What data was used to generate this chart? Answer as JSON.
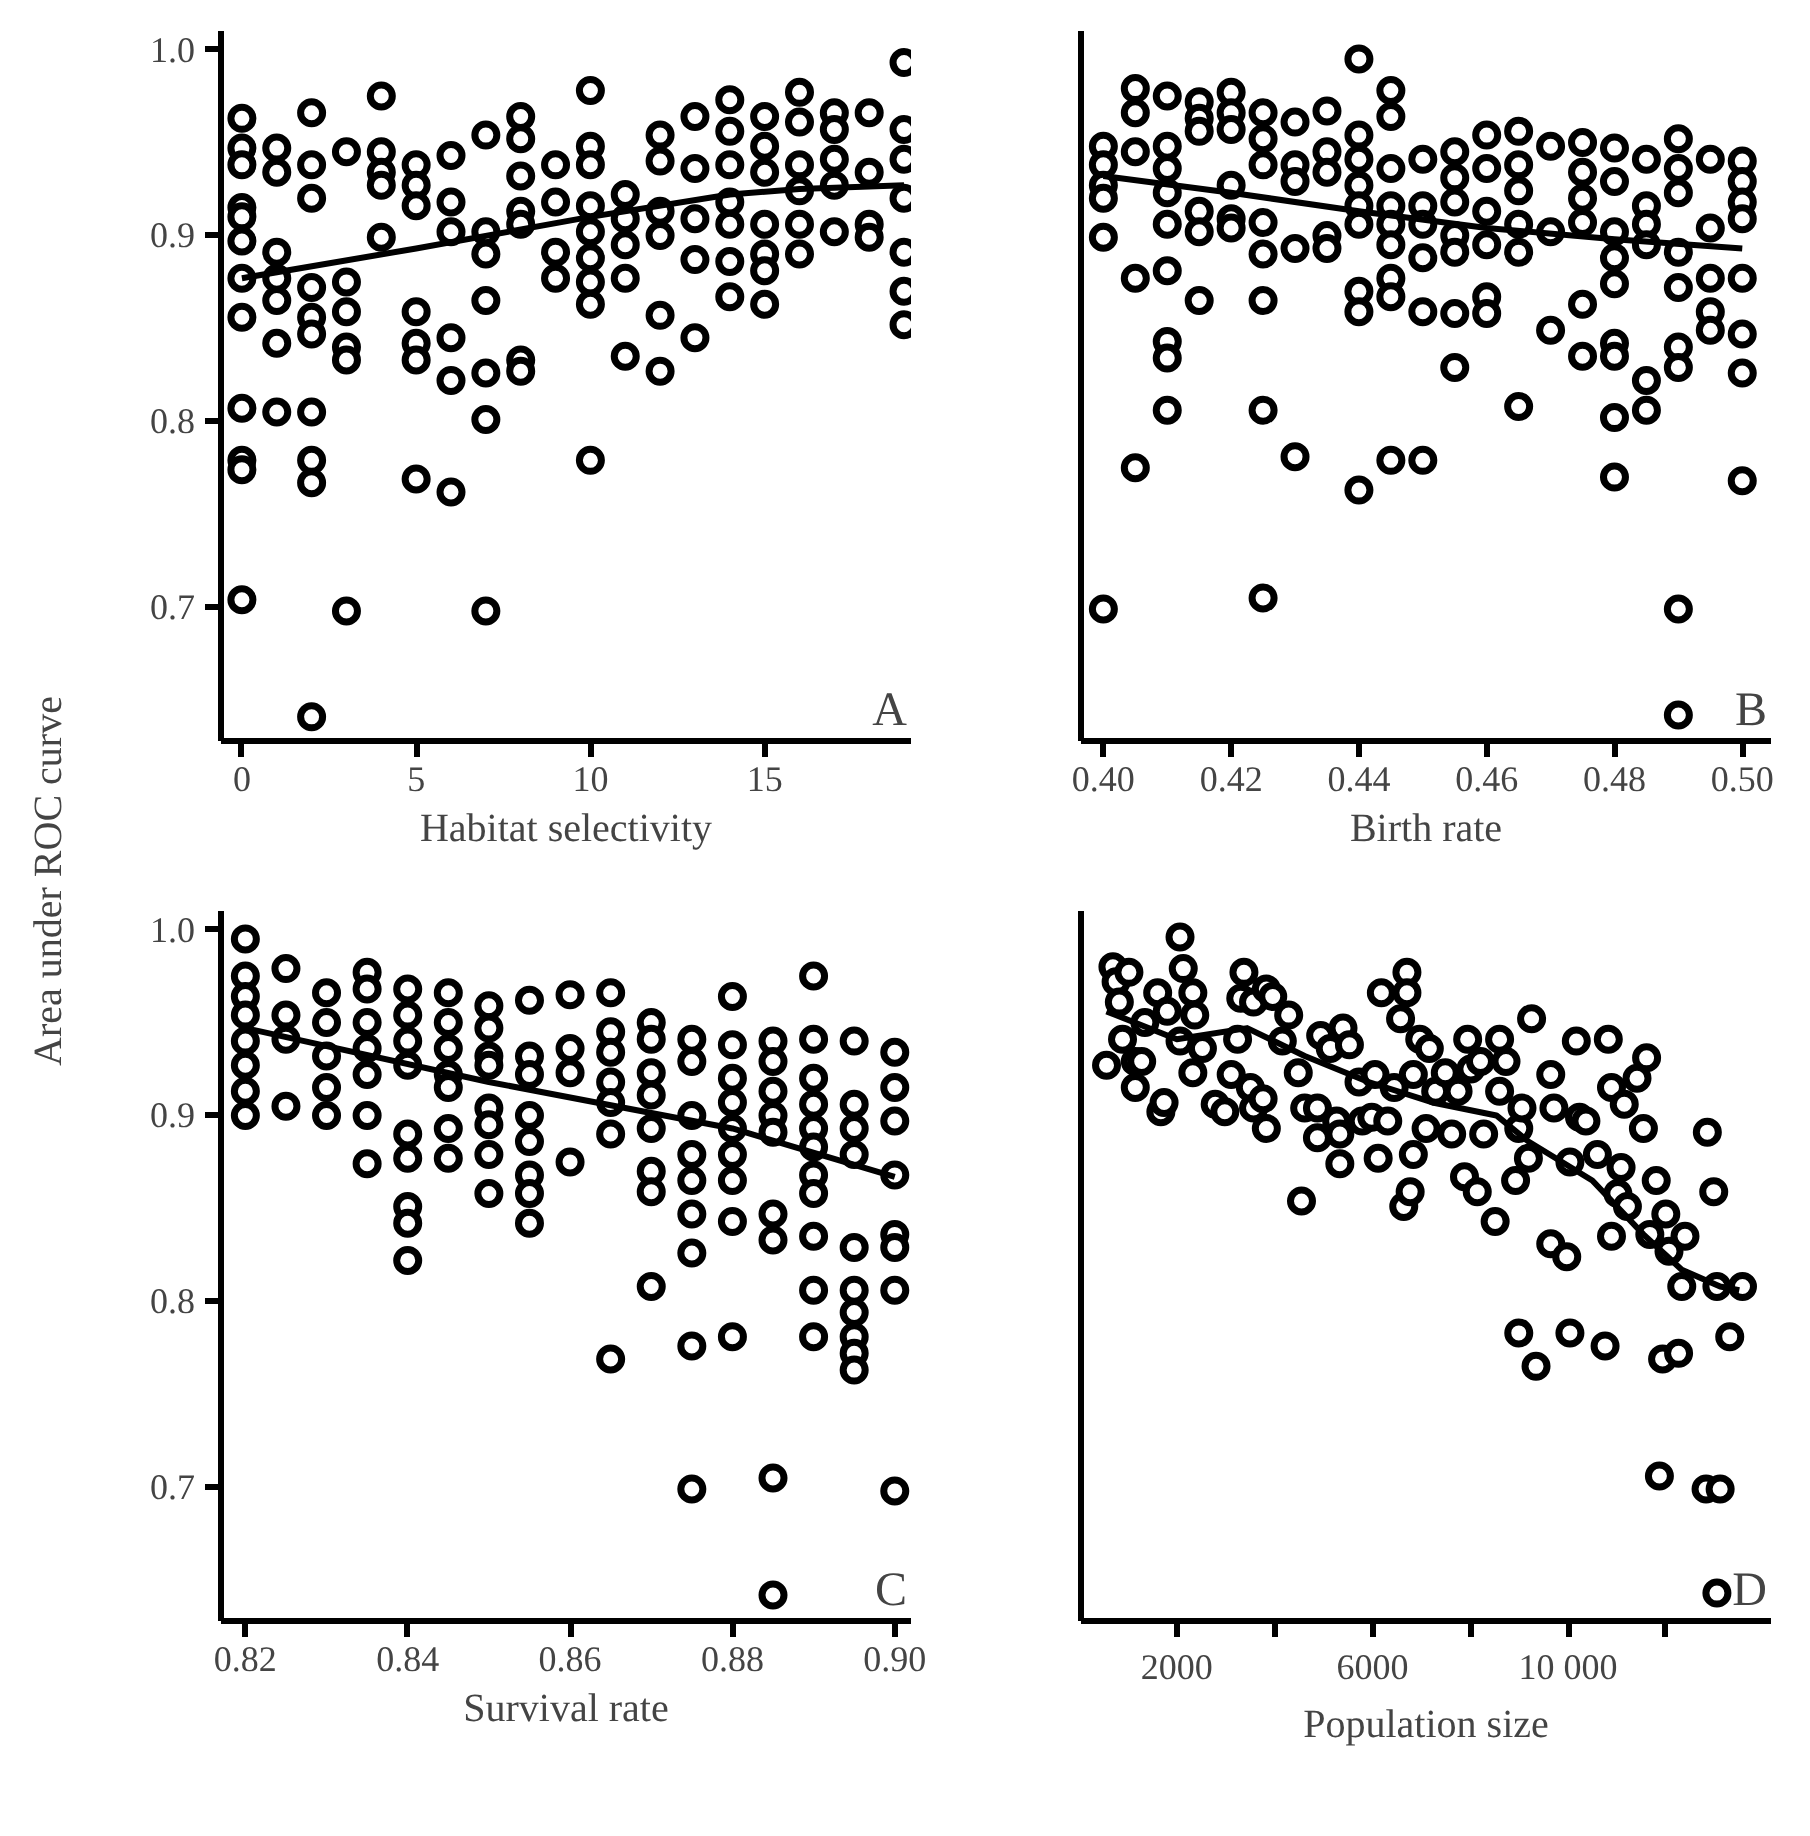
{
  "chart_data": [
    {
      "type": "scatter",
      "ylabel": "Area under ROC curve",
      "xlabel": "Habitat selectivity",
      "xlim": [
        -0.6,
        19.2
      ],
      "ylim": [
        0.628,
        1.01
      ],
      "xticks": [
        0,
        5,
        10,
        15
      ],
      "yticks": [
        0.7,
        0.8,
        0.9,
        {
          "value": 1.0,
          "label": "1.0"
        }
      ],
      "grid": false,
      "annotations": [
        "A"
      ],
      "series": [
        {
          "color": "#000000",
          "marker": "circle",
          "x": [
            0,
            0,
            0,
            0,
            0,
            0,
            0,
            0,
            0,
            0,
            0,
            0,
            1,
            1,
            1,
            1,
            1,
            1,
            1,
            2,
            2,
            2,
            2,
            2,
            2,
            2,
            2,
            2,
            2,
            3,
            3,
            3,
            3,
            3,
            3,
            4,
            4,
            4,
            4,
            4,
            5,
            5,
            5,
            5,
            5,
            5,
            5,
            6,
            6,
            6,
            6,
            6,
            6,
            7,
            7,
            7,
            7,
            7,
            7,
            7,
            8,
            8,
            8,
            8,
            8,
            8,
            8,
            9,
            9,
            9,
            9,
            10,
            10,
            10,
            10,
            10,
            10,
            10,
            10,
            10,
            11,
            11,
            11,
            11,
            11,
            12,
            12,
            12,
            12,
            12,
            12,
            13,
            13,
            13,
            13,
            13,
            14,
            14,
            14,
            14,
            14,
            14,
            14,
            15,
            15,
            15,
            15,
            15,
            15,
            15,
            16,
            16,
            16,
            16,
            16,
            16,
            17,
            17,
            17,
            17,
            17,
            18,
            18,
            18,
            18,
            19,
            19,
            19,
            19,
            19,
            19,
            19
          ],
          "values": [
            0.963,
            0.947,
            0.938,
            0.915,
            0.91,
            0.897,
            0.877,
            0.856,
            0.807,
            0.779,
            0.774,
            0.704,
            0.947,
            0.934,
            0.891,
            0.877,
            0.865,
            0.842,
            0.805,
            0.966,
            0.938,
            0.92,
            0.872,
            0.856,
            0.847,
            0.805,
            0.779,
            0.767,
            0.641,
            0.945,
            0.875,
            0.859,
            0.84,
            0.833,
            0.698,
            0.975,
            0.945,
            0.934,
            0.927,
            0.899,
            0.938,
            0.927,
            0.916,
            0.859,
            0.842,
            0.833,
            0.769,
            0.943,
            0.918,
            0.902,
            0.845,
            0.822,
            0.762,
            0.954,
            0.902,
            0.89,
            0.865,
            0.826,
            0.801,
            0.698,
            0.964,
            0.952,
            0.932,
            0.913,
            0.906,
            0.833,
            0.827,
            0.938,
            0.918,
            0.891,
            0.877,
            0.978,
            0.948,
            0.938,
            0.916,
            0.902,
            0.888,
            0.875,
            0.863,
            0.779,
            0.922,
            0.909,
            0.895,
            0.877,
            0.835,
            0.954,
            0.94,
            0.913,
            0.9,
            0.857,
            0.827,
            0.964,
            0.936,
            0.909,
            0.887,
            0.845,
            0.973,
            0.956,
            0.938,
            0.918,
            0.906,
            0.886,
            0.867,
            0.964,
            0.948,
            0.934,
            0.906,
            0.89,
            0.881,
            0.863,
            0.977,
            0.961,
            0.938,
            0.924,
            0.906,
            0.89,
            0.966,
            0.957,
            0.941,
            0.927,
            0.902,
            0.966,
            0.934,
            0.906,
            0.899,
            0.993,
            0.957,
            0.941,
            0.92,
            0.891,
            0.87,
            0.852
          ]
        },
        {
          "type": "line",
          "color": "#000000",
          "x": [
            0,
            5,
            10,
            14,
            16,
            19
          ],
          "values": [
            0.877,
            0.893,
            0.91,
            0.922,
            0.925,
            0.927
          ]
        }
      ]
    },
    {
      "type": "scatter",
      "xlabel": "Birth rate",
      "xlim": [
        0.3965,
        0.5045
      ],
      "ylim": [
        0.628,
        1.01
      ],
      "tick_labels": "x",
      "xticks": [
        {
          "value": 0.4,
          "label": "0.40"
        },
        {
          "value": 0.42,
          "label": "0.42"
        },
        {
          "value": 0.44,
          "label": "0.44"
        },
        {
          "value": 0.46,
          "label": "0.46"
        },
        {
          "value": 0.48,
          "label": "0.48"
        },
        {
          "value": 0.5,
          "label": "0.50"
        }
      ],
      "grid": false,
      "annotations": [
        "B"
      ],
      "series": [
        {
          "color": "#000000",
          "marker": "circle",
          "x": [
            0.4,
            0.4,
            0.4,
            0.4,
            0.4,
            0.4,
            0.405,
            0.405,
            0.405,
            0.405,
            0.405,
            0.41,
            0.41,
            0.41,
            0.41,
            0.41,
            0.41,
            0.41,
            0.41,
            0.41,
            0.415,
            0.415,
            0.415,
            0.415,
            0.415,
            0.415,
            0.42,
            0.42,
            0.42,
            0.42,
            0.42,
            0.42,
            0.425,
            0.425,
            0.425,
            0.425,
            0.425,
            0.425,
            0.425,
            0.425,
            0.43,
            0.43,
            0.43,
            0.43,
            0.43,
            0.435,
            0.435,
            0.435,
            0.435,
            0.435,
            0.44,
            0.44,
            0.44,
            0.44,
            0.44,
            0.44,
            0.44,
            0.44,
            0.44,
            0.445,
            0.445,
            0.445,
            0.445,
            0.445,
            0.445,
            0.445,
            0.445,
            0.445,
            0.45,
            0.45,
            0.45,
            0.45,
            0.45,
            0.45,
            0.455,
            0.455,
            0.455,
            0.455,
            0.455,
            0.455,
            0.455,
            0.46,
            0.46,
            0.46,
            0.46,
            0.46,
            0.46,
            0.465,
            0.465,
            0.465,
            0.465,
            0.465,
            0.465,
            0.47,
            0.47,
            0.47,
            0.475,
            0.475,
            0.475,
            0.475,
            0.475,
            0.475,
            0.48,
            0.48,
            0.48,
            0.48,
            0.48,
            0.48,
            0.48,
            0.48,
            0.48,
            0.485,
            0.485,
            0.485,
            0.485,
            0.485,
            0.485,
            0.49,
            0.49,
            0.49,
            0.49,
            0.49,
            0.49,
            0.49,
            0.49,
            0.49,
            0.495,
            0.495,
            0.495,
            0.495,
            0.495,
            0.5,
            0.5,
            0.5,
            0.5,
            0.5,
            0.5,
            0.5,
            0.5
          ],
          "values": [
            0.948,
            0.938,
            0.927,
            0.92,
            0.899,
            0.699,
            0.979,
            0.966,
            0.945,
            0.877,
            0.775,
            0.975,
            0.948,
            0.936,
            0.923,
            0.906,
            0.881,
            0.843,
            0.834,
            0.806,
            0.972,
            0.963,
            0.956,
            0.913,
            0.902,
            0.865,
            0.977,
            0.966,
            0.957,
            0.927,
            0.909,
            0.904,
            0.966,
            0.952,
            0.938,
            0.907,
            0.89,
            0.865,
            0.806,
            0.705,
            0.961,
            0.938,
            0.929,
            0.893,
            0.781,
            0.967,
            0.945,
            0.934,
            0.9,
            0.893,
            0.995,
            0.954,
            0.941,
            0.927,
            0.916,
            0.906,
            0.87,
            0.859,
            0.763,
            0.978,
            0.964,
            0.936,
            0.916,
            0.906,
            0.895,
            0.877,
            0.867,
            0.779,
            0.941,
            0.916,
            0.906,
            0.888,
            0.859,
            0.779,
            0.945,
            0.931,
            0.918,
            0.9,
            0.891,
            0.858,
            0.829,
            0.954,
            0.936,
            0.913,
            0.895,
            0.867,
            0.858,
            0.956,
            0.938,
            0.924,
            0.906,
            0.891,
            0.808,
            0.948,
            0.902,
            0.849,
            0.95,
            0.934,
            0.92,
            0.907,
            0.863,
            0.835,
            0.947,
            0.929,
            0.902,
            0.888,
            0.874,
            0.842,
            0.835,
            0.802,
            0.77,
            0.941,
            0.916,
            0.906,
            0.895,
            0.822,
            0.806,
            0.952,
            0.936,
            0.923,
            0.891,
            0.872,
            0.84,
            0.829,
            0.699,
            0.642,
            0.941,
            0.904,
            0.877,
            0.859,
            0.849,
            0.94,
            0.929,
            0.918,
            0.909,
            0.877,
            0.847,
            0.826,
            0.768
          ]
        },
        {
          "type": "line",
          "color": "#000000",
          "x": [
            0.4,
            0.42,
            0.44,
            0.46,
            0.48,
            0.5
          ],
          "values": [
            0.932,
            0.923,
            0.913,
            0.904,
            0.898,
            0.893
          ]
        }
      ]
    },
    {
      "type": "scatter",
      "xlabel": "Survival rate",
      "xlim": [
        0.817,
        0.902
      ],
      "ylim": [
        0.628,
        1.01
      ],
      "xticks": [
        0.82,
        0.84,
        0.86,
        0.88,
        {
          "value": 0.9,
          "label": "0.90"
        }
      ],
      "yticks": [
        0.7,
        0.8,
        0.9,
        {
          "value": 1.0,
          "label": "1.0"
        }
      ],
      "grid": false,
      "annotations": [
        "C"
      ],
      "series": [
        {
          "color": "#000000",
          "marker": "circle",
          "x": [
            0.82,
            0.82,
            0.82,
            0.82,
            0.82,
            0.82,
            0.82,
            0.82,
            0.825,
            0.825,
            0.825,
            0.825,
            0.83,
            0.83,
            0.83,
            0.83,
            0.83,
            0.835,
            0.835,
            0.835,
            0.835,
            0.835,
            0.835,
            0.835,
            0.84,
            0.84,
            0.84,
            0.84,
            0.84,
            0.84,
            0.84,
            0.84,
            0.84,
            0.845,
            0.845,
            0.845,
            0.845,
            0.845,
            0.845,
            0.845,
            0.85,
            0.85,
            0.85,
            0.85,
            0.85,
            0.85,
            0.85,
            0.85,
            0.855,
            0.855,
            0.855,
            0.855,
            0.855,
            0.855,
            0.855,
            0.855,
            0.86,
            0.86,
            0.86,
            0.86,
            0.865,
            0.865,
            0.865,
            0.865,
            0.865,
            0.865,
            0.865,
            0.87,
            0.87,
            0.87,
            0.87,
            0.87,
            0.87,
            0.87,
            0.87,
            0.875,
            0.875,
            0.875,
            0.875,
            0.875,
            0.875,
            0.875,
            0.875,
            0.875,
            0.88,
            0.88,
            0.88,
            0.88,
            0.88,
            0.88,
            0.88,
            0.88,
            0.88,
            0.885,
            0.885,
            0.885,
            0.885,
            0.885,
            0.885,
            0.885,
            0.885,
            0.885,
            0.89,
            0.89,
            0.89,
            0.89,
            0.89,
            0.89,
            0.89,
            0.89,
            0.89,
            0.89,
            0.89,
            0.895,
            0.895,
            0.895,
            0.895,
            0.895,
            0.895,
            0.895,
            0.895,
            0.895,
            0.895,
            0.9,
            0.9,
            0.9,
            0.9,
            0.9,
            0.9,
            0.9,
            0.9
          ],
          "values": [
            0.995,
            0.975,
            0.964,
            0.954,
            0.94,
            0.927,
            0.913,
            0.9,
            0.979,
            0.954,
            0.941,
            0.905,
            0.966,
            0.95,
            0.932,
            0.915,
            0.9,
            0.977,
            0.968,
            0.95,
            0.936,
            0.922,
            0.9,
            0.874,
            0.968,
            0.954,
            0.94,
            0.927,
            0.89,
            0.877,
            0.851,
            0.842,
            0.822,
            0.966,
            0.95,
            0.936,
            0.922,
            0.915,
            0.893,
            0.877,
            0.959,
            0.947,
            0.932,
            0.927,
            0.904,
            0.895,
            0.879,
            0.858,
            0.962,
            0.932,
            0.922,
            0.9,
            0.886,
            0.868,
            0.858,
            0.842,
            0.965,
            0.936,
            0.923,
            0.875,
            0.966,
            0.945,
            0.934,
            0.918,
            0.907,
            0.89,
            0.769,
            0.95,
            0.941,
            0.923,
            0.911,
            0.893,
            0.87,
            0.859,
            0.808,
            0.941,
            0.929,
            0.9,
            0.879,
            0.865,
            0.847,
            0.826,
            0.776,
            0.699,
            0.964,
            0.938,
            0.92,
            0.907,
            0.893,
            0.879,
            0.865,
            0.843,
            0.781,
            0.94,
            0.929,
            0.913,
            0.9,
            0.891,
            0.847,
            0.833,
            0.705,
            0.642,
            0.975,
            0.941,
            0.92,
            0.906,
            0.893,
            0.883,
            0.868,
            0.858,
            0.835,
            0.806,
            0.781,
            0.94,
            0.906,
            0.893,
            0.879,
            0.829,
            0.806,
            0.794,
            0.781,
            0.772,
            0.763,
            0.934,
            0.915,
            0.897,
            0.868,
            0.836,
            0.829,
            0.806,
            0.698
          ]
        },
        {
          "type": "line",
          "color": "#000000",
          "x": [
            0.82,
            0.85,
            0.88,
            0.9
          ],
          "values": [
            0.947,
            0.918,
            0.893,
            0.867
          ]
        }
      ]
    },
    {
      "type": "scatter",
      "xlabel": "Population size",
      "xlim": [
        40,
        14150
      ],
      "ylim": [
        0.628,
        1.01
      ],
      "tick_labels": "x",
      "xticks": [
        2000,
        {
          "value": 4000,
          "label": null
        },
        6000,
        {
          "value": 8000,
          "label": null
        },
        {
          "value": 10000,
          "label": "10 000"
        },
        {
          "value": 12000,
          "label": null
        }
      ],
      "grid": false,
      "annotations": [
        "D"
      ],
      "series": [
        {
          "color": "#000000",
          "marker": "circle",
          "x": [
            562,
            693,
            758,
            1020,
            824,
            889,
            1150,
            1150,
            1281,
            1346,
            1608,
            1673,
            1739,
            1804,
            2065,
            2131,
            2065,
            2327,
            2366,
            2327,
            2523,
            2784,
            2980,
            3111,
            3242,
            3372,
            3307,
            3503,
            3568,
            3568,
            3764,
            3830,
            3830,
            3961,
            4157,
            4287,
            4483,
            4549,
            4614,
            4875,
            4875,
            4941,
            5137,
            5268,
            5333,
            5333,
            5398,
            5529,
            5725,
            5790,
            5986,
            6052,
            6117,
            6182,
            6313,
            6444,
            6575,
            6705,
            6705,
            6640,
            6771,
            6836,
            6836,
            6967,
            7097,
            7163,
            7293,
            7489,
            7620,
            7751,
            7882,
            7947,
            8012,
            8143,
            8209,
            8274,
            8509,
            8600,
            8600,
            8731,
            8927,
            8992,
            9058,
            8992,
            9189,
            9254,
            9345,
            9646,
            9646,
            9711,
            9973,
            10038,
            10038,
            10169,
            10234,
            10365,
            10600,
            10757,
            10823,
            10888,
            10888,
            11018,
            11084,
            11149,
            11214,
            11410,
            11541,
            11606,
            11672,
            11803,
            11868,
            11933,
            11999,
            12064,
            12260,
            12325,
            12391,
            12848,
            12822,
            12979,
            13044,
            13110,
            13306,
            13567,
            13044
          ],
          "values": [
            0.927,
            0.98,
            0.972,
            0.977,
            0.961,
            0.941,
            0.915,
            0.929,
            0.929,
            0.95,
            0.966,
            0.902,
            0.907,
            0.956,
            0.996,
            0.979,
            0.94,
            0.966,
            0.954,
            0.923,
            0.936,
            0.906,
            0.902,
            0.922,
            0.941,
            0.977,
            0.963,
            0.915,
            0.961,
            0.904,
            0.909,
            0.893,
            0.968,
            0.964,
            0.94,
            0.954,
            0.923,
            0.854,
            0.904,
            0.904,
            0.888,
            0.943,
            0.936,
            0.897,
            0.89,
            0.874,
            0.947,
            0.938,
            0.918,
            0.897,
            0.899,
            0.922,
            0.877,
            0.966,
            0.897,
            0.915,
            0.952,
            0.977,
            0.966,
            0.851,
            0.859,
            0.922,
            0.879,
            0.941,
            0.893,
            0.936,
            0.913,
            0.923,
            0.89,
            0.913,
            0.867,
            0.941,
            0.925,
            0.859,
            0.929,
            0.89,
            0.843,
            0.913,
            0.941,
            0.929,
            0.865,
            0.893,
            0.904,
            0.783,
            0.877,
            0.952,
            0.765,
            0.922,
            0.831,
            0.904,
            0.824,
            0.875,
            0.783,
            0.94,
            0.899,
            0.897,
            0.879,
            0.776,
            0.941,
            0.915,
            0.835,
            0.858,
            0.872,
            0.906,
            0.851,
            0.92,
            0.893,
            0.931,
            0.836,
            0.865,
            0.706,
            0.769,
            0.847,
            0.827,
            0.772,
            0.808,
            0.835,
            0.891,
            0.699,
            0.859,
            0.808,
            0.699,
            0.781,
            0.808,
            0.643
          ]
        },
        {
          "type": "line",
          "color": "#000000",
          "x": [
            562,
            2000,
            3438,
            4614,
            5921,
            7228,
            8535,
            9189,
            10496,
            11541,
            12325,
            13110,
            13502
          ],
          "values": [
            0.956,
            0.941,
            0.947,
            0.932,
            0.918,
            0.907,
            0.9,
            0.886,
            0.865,
            0.836,
            0.817,
            0.808,
            0.806
          ]
        }
      ]
    }
  ]
}
